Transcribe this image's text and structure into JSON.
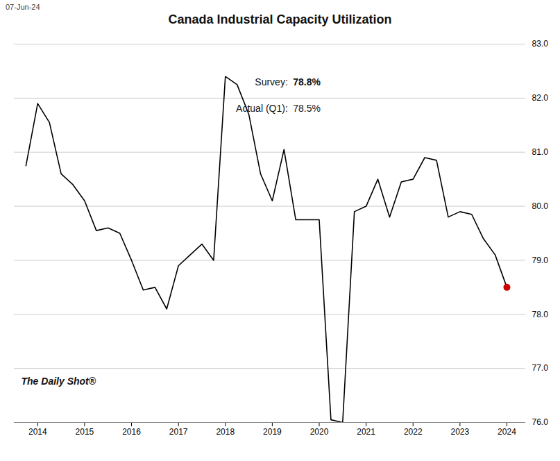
{
  "chart_data": {
    "type": "line",
    "title": "Canada Industrial Capacity Utilization",
    "subtitle": "07-Jun-24",
    "caption": "The Daily Shot®",
    "x": [
      2013.75,
      2014.0,
      2014.25,
      2014.5,
      2014.75,
      2015.0,
      2015.25,
      2015.5,
      2015.75,
      2016.0,
      2016.25,
      2016.5,
      2016.75,
      2017.0,
      2017.25,
      2017.5,
      2017.75,
      2018.0,
      2018.25,
      2018.5,
      2018.75,
      2019.0,
      2019.25,
      2019.5,
      2019.75,
      2020.0,
      2020.25,
      2020.5,
      2020.75,
      2021.0,
      2021.25,
      2021.5,
      2021.75,
      2022.0,
      2022.25,
      2022.5,
      2022.75,
      2023.0,
      2023.25,
      2023.5,
      2023.75,
      2024.0
    ],
    "values": [
      80.75,
      81.9,
      81.55,
      80.6,
      80.4,
      80.1,
      79.55,
      79.6,
      79.5,
      79.0,
      78.45,
      78.5,
      78.1,
      78.9,
      79.1,
      79.3,
      79.0,
      82.4,
      82.25,
      81.7,
      80.6,
      80.1,
      81.05,
      79.75,
      79.75,
      79.75,
      76.05,
      76.0,
      79.9,
      80.0,
      80.5,
      79.8,
      80.45,
      80.5,
      80.9,
      80.85,
      79.8,
      79.9,
      79.85,
      79.4,
      79.1,
      78.5
    ],
    "color": "#000000",
    "points": [
      {
        "x": 2024.0,
        "y": 78.5,
        "color": "#cc0000"
      }
    ],
    "annotations": [
      {
        "label": "Survey:",
        "text": "78.8%"
      },
      {
        "label": "Actual (Q1):",
        "text": "78.5%"
      }
    ],
    "xlim": [
      2013.5,
      2024.4
    ],
    "ylim": [
      76.0,
      83.0
    ],
    "xticks": [
      2014,
      2015,
      2016,
      2017,
      2018,
      2019,
      2020,
      2021,
      2022,
      2023,
      2024
    ],
    "yticks": [
      {
        "value": 76,
        "label": "76.0"
      },
      {
        "value": 77,
        "label": "77.0"
      },
      {
        "value": 78,
        "label": "78.0"
      },
      {
        "value": 79,
        "label": "79.0"
      },
      {
        "value": 80,
        "label": "80.0"
      },
      {
        "value": 81,
        "label": "81.0"
      },
      {
        "value": 82,
        "label": "82.0"
      },
      {
        "value": 83,
        "label": "83.0"
      }
    ],
    "grid": true
  }
}
